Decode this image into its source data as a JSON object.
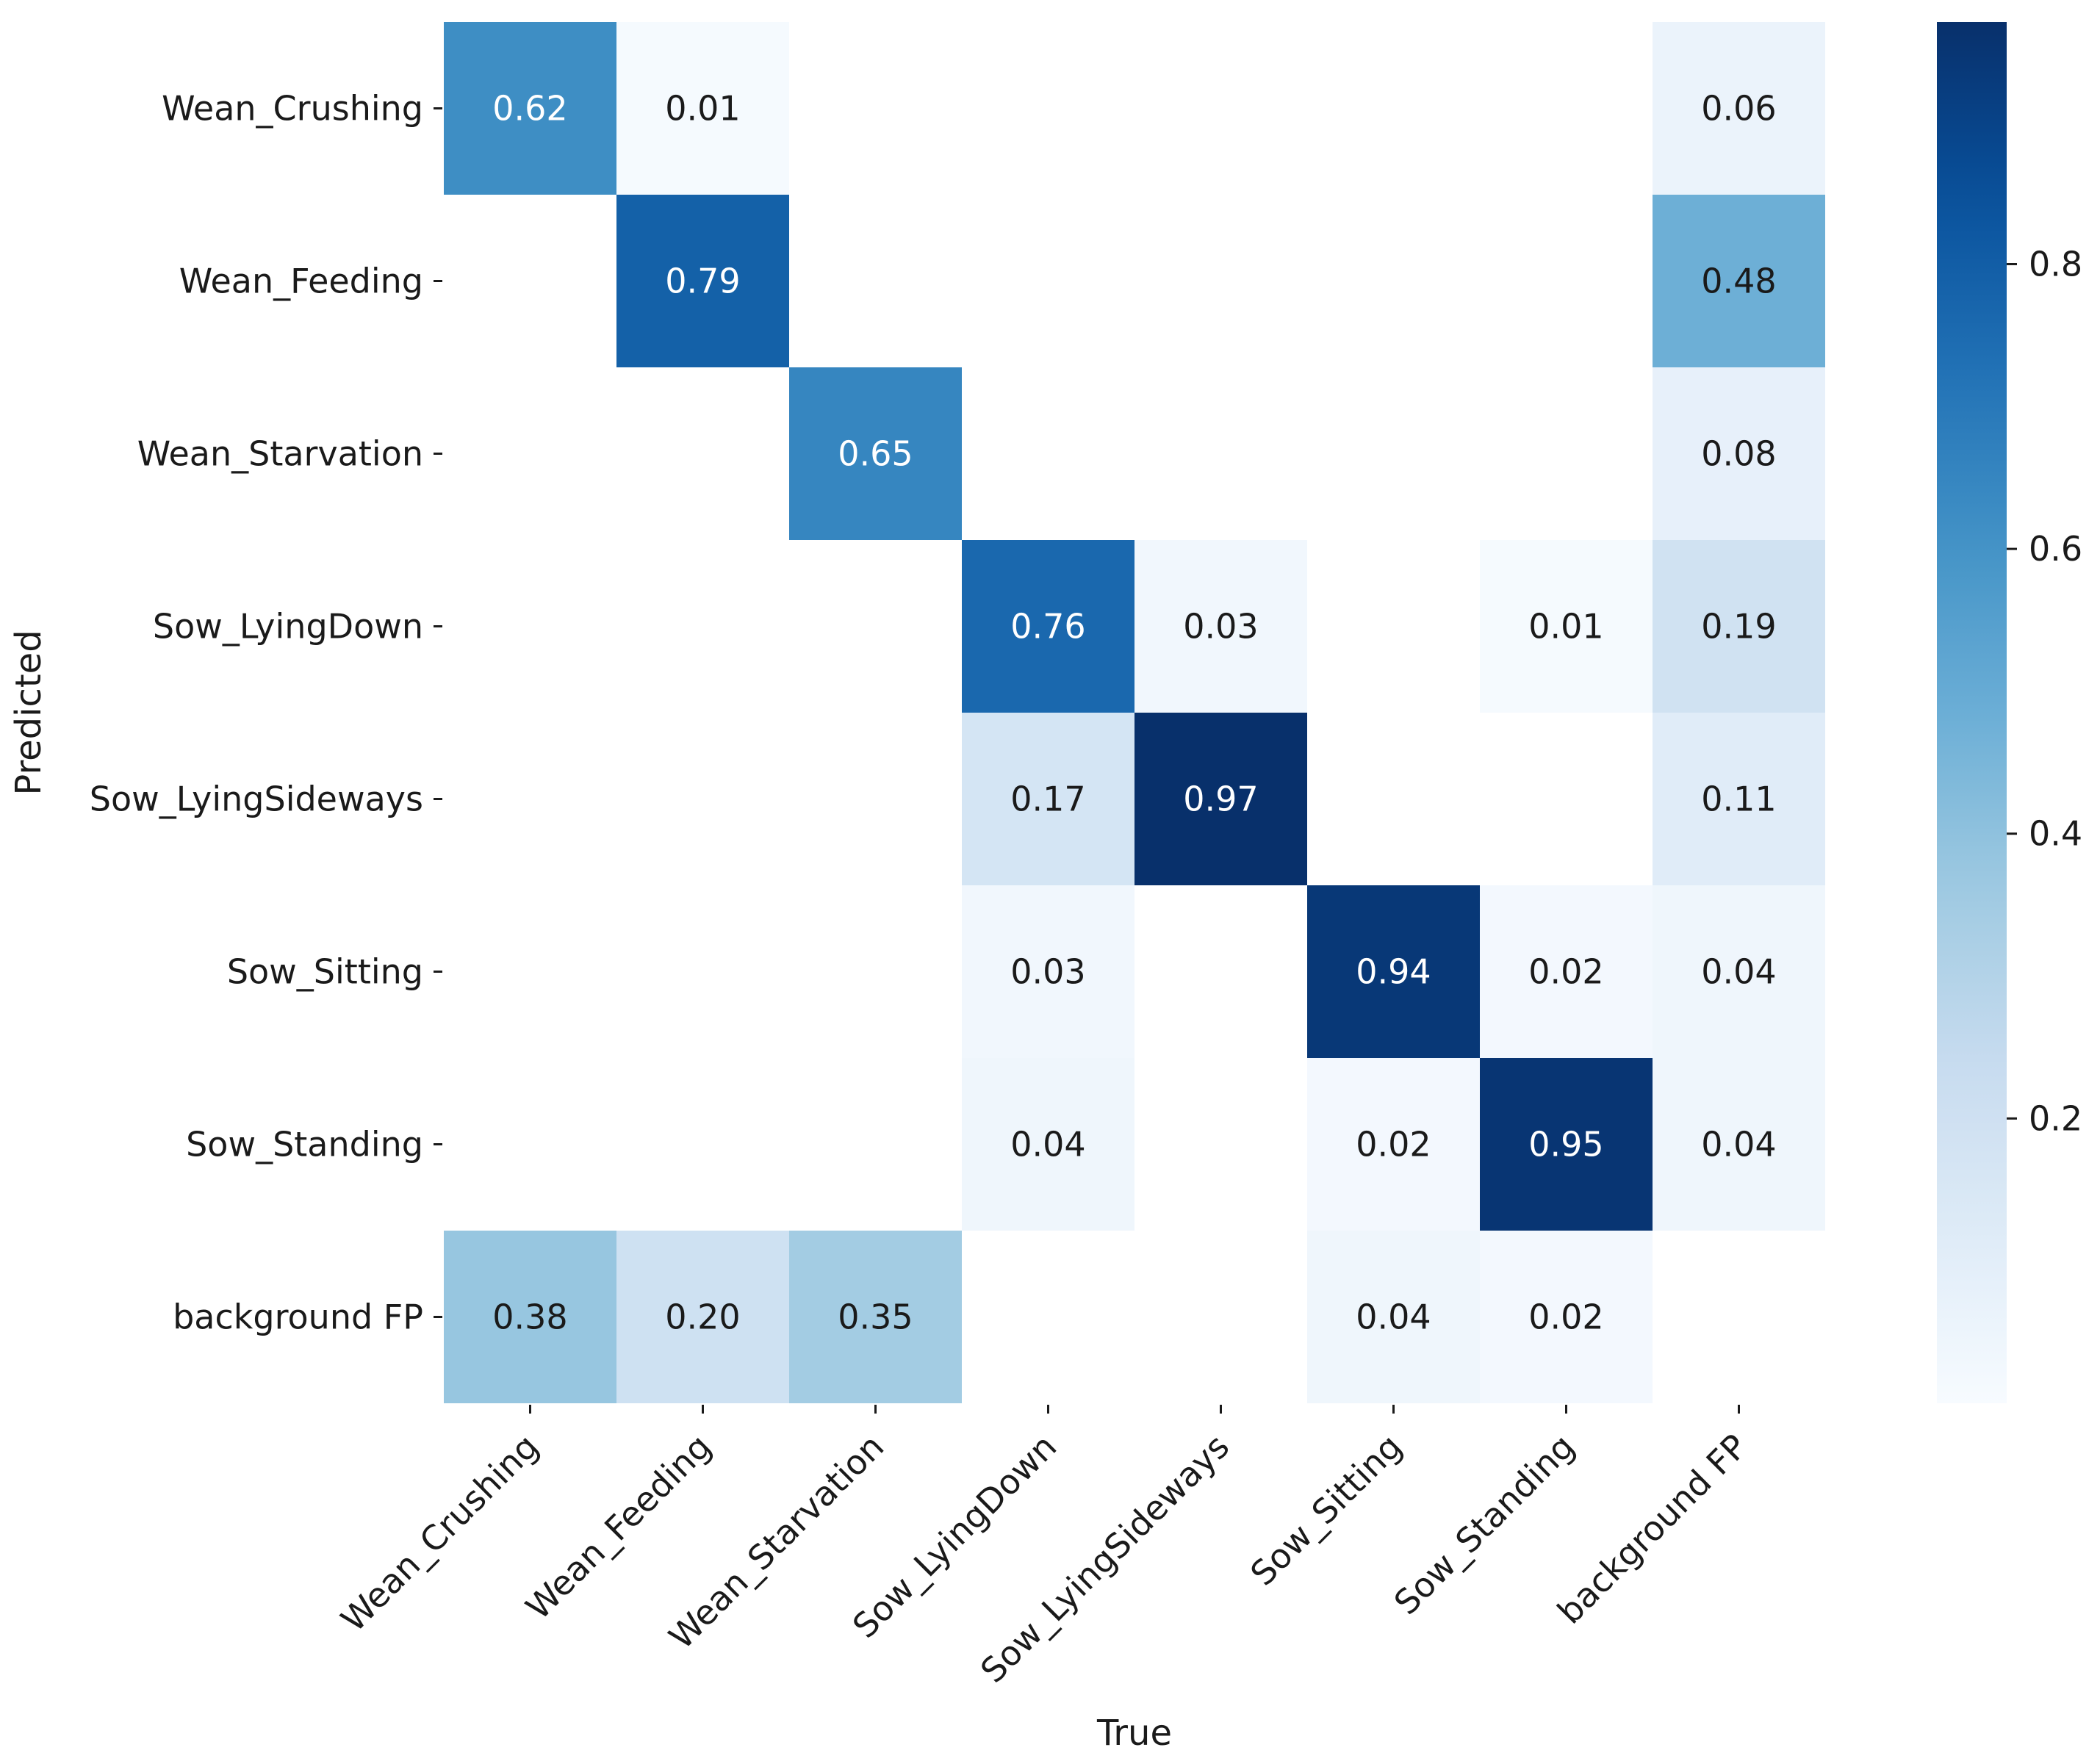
{
  "chart_data": {
    "type": "heatmap",
    "title": "",
    "xlabel": "True",
    "ylabel": "Predicted",
    "x_categories": [
      "Wean_Crushing",
      "Wean_Feeding",
      "Wean_Starvation",
      "Sow_LyingDown",
      "Sow_LyingSideways",
      "Sow_Sitting",
      "Sow_Standing",
      "background FP"
    ],
    "y_categories": [
      "Wean_Crushing",
      "Wean_Feeding",
      "Wean_Starvation",
      "Sow_LyingDown",
      "Sow_LyingSideways",
      "Sow_Sitting",
      "Sow_Standing",
      "background FP"
    ],
    "values": [
      [
        0.62,
        0.01,
        null,
        null,
        null,
        null,
        null,
        0.06
      ],
      [
        null,
        0.79,
        null,
        null,
        null,
        null,
        null,
        0.48
      ],
      [
        null,
        null,
        0.65,
        null,
        null,
        null,
        null,
        0.08
      ],
      [
        null,
        null,
        null,
        0.76,
        0.03,
        null,
        0.01,
        0.19
      ],
      [
        null,
        null,
        null,
        0.17,
        0.97,
        null,
        null,
        0.11
      ],
      [
        null,
        null,
        null,
        0.03,
        null,
        0.94,
        0.02,
        0.04
      ],
      [
        null,
        null,
        null,
        0.04,
        null,
        0.02,
        0.95,
        0.04
      ],
      [
        0.38,
        0.2,
        0.35,
        null,
        null,
        0.04,
        0.02,
        null
      ]
    ],
    "value_labels": [
      [
        "0.62",
        "0.01",
        "",
        "",
        "",
        "",
        "",
        "0.06"
      ],
      [
        "",
        "0.79",
        "",
        "",
        "",
        "",
        "",
        "0.48"
      ],
      [
        "",
        "",
        "0.65",
        "",
        "",
        "",
        "",
        "0.08"
      ],
      [
        "",
        "",
        "",
        "0.76",
        "0.03",
        "",
        "0.01",
        "0.19"
      ],
      [
        "",
        "",
        "",
        "0.17",
        "0.97",
        "",
        "",
        "0.11"
      ],
      [
        "",
        "",
        "",
        "0.03",
        "",
        "0.94",
        "0.02",
        "0.04"
      ],
      [
        "",
        "",
        "",
        "0.04",
        "",
        "0.02",
        "0.95",
        "0.04"
      ],
      [
        "0.38",
        "0.20",
        "0.35",
        "",
        "",
        "0.04",
        "0.02",
        ""
      ]
    ],
    "colormap": "Blues",
    "colorbar": {
      "range": [
        0.0,
        0.97
      ],
      "ticks": [
        0.2,
        0.4,
        0.6,
        0.8
      ],
      "tick_labels": [
        "0.2",
        "0.4",
        "0.6",
        "0.8"
      ]
    },
    "grid": false,
    "legend": "colorbar-right"
  }
}
